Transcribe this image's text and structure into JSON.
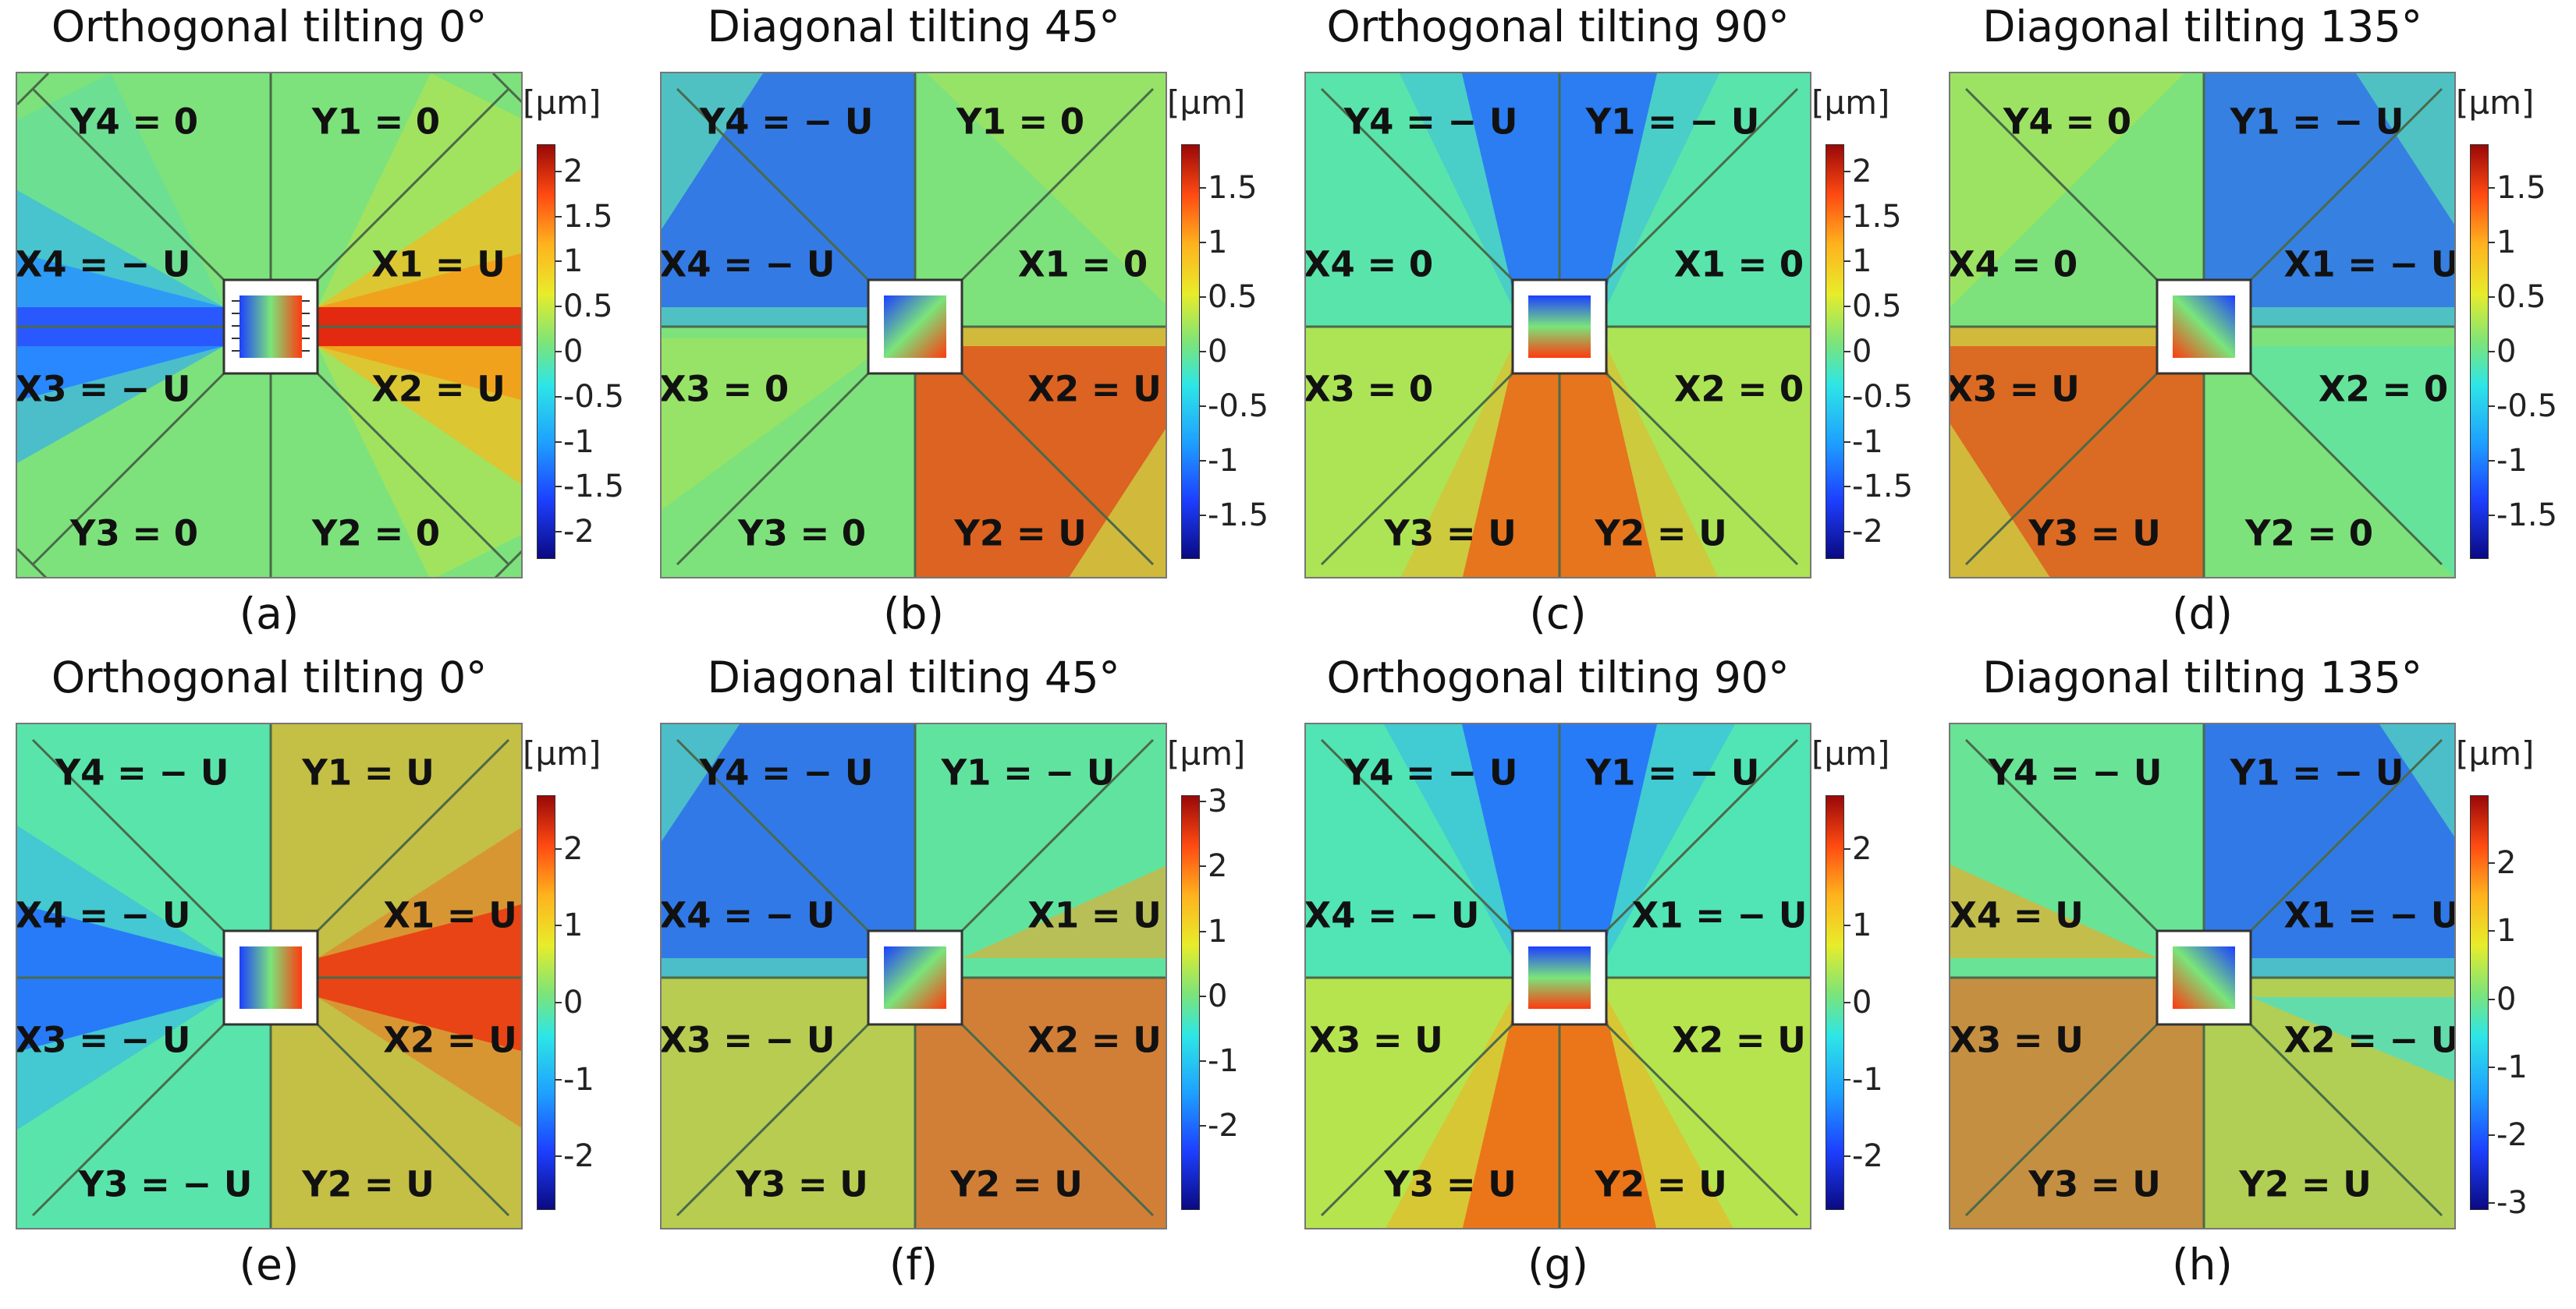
{
  "figure": {
    "unit_label": "[µm]",
    "panels": [
      {
        "id": "a",
        "caption": "(a)",
        "title": "Orthogonal tilting 0°",
        "labels": {
          "Y4": "Y4 = 0",
          "Y1": "Y1 = 0",
          "X4": "X4 = − U",
          "X1": "X1 = U",
          "X3": "X3 = − U",
          "X2": "X2 = U",
          "Y3": "Y3 = 0",
          "Y2": "Y2 = 0"
        },
        "colorbar": {
          "min": -2.3,
          "max": 2.3,
          "ticks": [
            "2",
            "1.5",
            "1",
            "0.5",
            "0",
            "-0.5",
            "-1",
            "-1.5",
            "-2"
          ],
          "tick_values": [
            2,
            1.5,
            1,
            0.5,
            0,
            -0.5,
            -1,
            -1.5,
            -2
          ]
        }
      },
      {
        "id": "b",
        "caption": "(b)",
        "title": "Diagonal tilting 45°",
        "labels": {
          "Y4": "Y4 = − U",
          "Y1": "Y1 = 0",
          "X4": "X4 = − U",
          "X1": "X1 = 0",
          "X3": "X3 = 0",
          "X2": "X2 = U",
          "Y3": "Y3 = 0",
          "Y2": "Y2 = U"
        },
        "colorbar": {
          "min": -1.9,
          "max": 1.9,
          "ticks": [
            "1.5",
            "1",
            "0.5",
            "0",
            "-0.5",
            "-1",
            "-1.5"
          ],
          "tick_values": [
            1.5,
            1,
            0.5,
            0,
            -0.5,
            -1,
            -1.5
          ]
        }
      },
      {
        "id": "c",
        "caption": "(c)",
        "title": "Orthogonal tilting 90°",
        "labels": {
          "Y4": "Y4 = − U",
          "Y1": "Y1 = − U",
          "X4": "X4 = 0",
          "X1": "X1 = 0",
          "X3": "X3 = 0",
          "X2": "X2 = 0",
          "Y3": "Y3 = U",
          "Y2": "Y2 = U"
        },
        "colorbar": {
          "min": -2.3,
          "max": 2.3,
          "ticks": [
            "2",
            "1.5",
            "1",
            "0.5",
            "0",
            "-0.5",
            "-1",
            "-1.5",
            "-2"
          ],
          "tick_values": [
            2,
            1.5,
            1,
            0.5,
            0,
            -0.5,
            -1,
            -1.5,
            -2
          ]
        }
      },
      {
        "id": "d",
        "caption": "(d)",
        "title": "Diagonal tilting 135°",
        "labels": {
          "Y4": "Y4 = 0",
          "Y1": "Y1 = − U",
          "X4": "X4 = 0",
          "X1": "X1 = − U",
          "X3": "X3 = U",
          "X2": "X2 = 0",
          "Y3": "Y3 = U",
          "Y2": "Y2 = 0"
        },
        "colorbar": {
          "min": -1.9,
          "max": 1.9,
          "ticks": [
            "1.5",
            "1",
            "0.5",
            "0",
            "-0.5",
            "-1",
            "-1.5"
          ],
          "tick_values": [
            1.5,
            1,
            0.5,
            0,
            -0.5,
            -1,
            -1.5
          ]
        }
      },
      {
        "id": "e",
        "caption": "(e)",
        "title": "Orthogonal tilting 0°",
        "labels": {
          "Y4": "Y4 = − U",
          "Y1": "Y1 = U",
          "X4": "X4 = − U",
          "X1": "X1 = U",
          "X3": "X3 = − U",
          "X2": "X2 = U",
          "Y3": "Y3 = − U",
          "Y2": "Y2 = U"
        },
        "colorbar": {
          "min": -2.7,
          "max": 2.7,
          "ticks": [
            "2",
            "1",
            "0",
            "-1",
            "-2"
          ],
          "tick_values": [
            2,
            1,
            0,
            -1,
            -2
          ]
        }
      },
      {
        "id": "f",
        "caption": "(f)",
        "title": "Diagonal tilting 45°",
        "labels": {
          "Y4": "Y4 = − U",
          "Y1": "Y1 = − U",
          "X4": "X4 = − U",
          "X1": "X1 = U",
          "X3": "X3 = − U",
          "X2": "X2 = U",
          "Y3": "Y3 = U",
          "Y2": "Y2 = U"
        },
        "colorbar": {
          "min": -3.3,
          "max": 3.1,
          "ticks": [
            "3",
            "2",
            "1",
            "0",
            "-1",
            "-2"
          ],
          "tick_values": [
            3,
            2,
            1,
            0,
            -1,
            -2
          ]
        }
      },
      {
        "id": "g",
        "caption": "(g)",
        "title": "Orthogonal tilting 90°",
        "labels": {
          "Y4": "Y4 = − U",
          "Y1": "Y1 = − U",
          "X4": "X4 = − U",
          "X1": "X1 = − U",
          "X3": "X3 = U",
          "X2": "X2 = U",
          "Y3": "Y3 = U",
          "Y2": "Y2 = U"
        },
        "colorbar": {
          "min": -2.7,
          "max": 2.7,
          "ticks": [
            "2",
            "1",
            "0",
            "-1",
            "-2"
          ],
          "tick_values": [
            2,
            1,
            0,
            -1,
            -2
          ]
        }
      },
      {
        "id": "h",
        "caption": "(h)",
        "title": "Diagonal tilting 135°",
        "labels": {
          "Y4": "Y4 = − U",
          "Y1": "Y1 = − U",
          "X4": "X4 = U",
          "X1": "X1 = − U",
          "X3": "X3 = U",
          "X2": "X2 = − U",
          "Y3": "Y3 = U",
          "Y2": "Y2 = U"
        },
        "colorbar": {
          "min": -3.1,
          "max": 3.0,
          "ticks": [
            "2",
            "1",
            "0",
            "-1",
            "-2",
            "-3"
          ],
          "tick_values": [
            2,
            1,
            0,
            -1,
            -2,
            -3
          ]
        }
      }
    ]
  }
}
